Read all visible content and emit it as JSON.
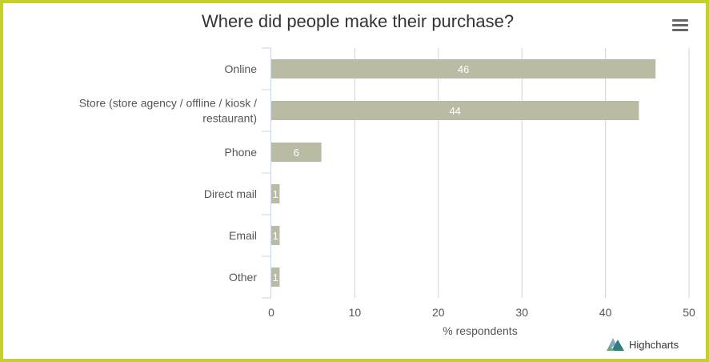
{
  "chart_data": {
    "type": "bar",
    "orientation": "horizontal",
    "title": "Where did people make their purchase?",
    "categories": [
      "Online",
      "Store (store agency / offline / kiosk / restaurant)",
      "Phone",
      "Direct mail",
      "Email",
      "Other"
    ],
    "category_lines": [
      [
        "Online"
      ],
      [
        "Store (store agency / offline / kiosk /",
        "restaurant)"
      ],
      [
        "Phone"
      ],
      [
        "Direct mail"
      ],
      [
        "Email"
      ],
      [
        "Other"
      ]
    ],
    "values": [
      46,
      44,
      6,
      1,
      1,
      1
    ],
    "data_labels": [
      "46",
      "44",
      "6",
      "1",
      "1",
      "1"
    ],
    "xlabel": "% respondents",
    "ylabel": "",
    "xlim": [
      0,
      50
    ],
    "ticks": [
      0,
      10,
      20,
      30,
      40,
      50
    ],
    "grid": true,
    "bar_color": "#b9bca3",
    "data_label_color": "#ffffff"
  },
  "frame_color": "#c5d12a",
  "menu_icon": "hamburger-menu-icon",
  "credits": {
    "icon": "highcharts-logo-icon",
    "text": "Highcharts"
  }
}
